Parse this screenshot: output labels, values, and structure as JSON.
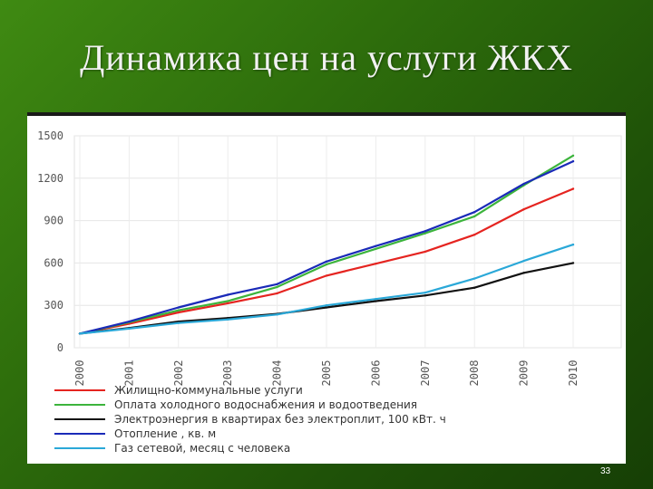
{
  "slide": {
    "title": "Динамика цен на услуги ЖКХ",
    "page_number": "33"
  },
  "colors": {
    "red": "#e52420",
    "green": "#3cb43c",
    "black": "#111111",
    "blue": "#1a2ab8",
    "cyan": "#2aa8d8"
  },
  "chart_data": {
    "type": "line",
    "title": "",
    "xlabel": "",
    "ylabel": "",
    "x": [
      "2000",
      "2001",
      "2002",
      "2003",
      "2004",
      "2005",
      "2006",
      "2007",
      "2008",
      "2009",
      "2010"
    ],
    "yticks": [
      0,
      300,
      600,
      900,
      1200,
      1500
    ],
    "ylim": [
      0,
      1500
    ],
    "grid": true,
    "legend_position": "bottom",
    "series": [
      {
        "name": "Жилищно-коммунальные услуги",
        "color": "#e52420",
        "values": [
          100,
          170,
          250,
          315,
          385,
          510,
          595,
          680,
          800,
          980,
          1125
        ]
      },
      {
        "name": "Оплата холодного водоснабжения и водоотведения",
        "color": "#3cb43c",
        "values": [
          100,
          180,
          265,
          330,
          430,
          590,
          700,
          810,
          930,
          1150,
          1360
        ]
      },
      {
        "name": "Электроэнергия в квартирах без электроплит, 100 кВт. ч",
        "color": "#111111",
        "values": [
          100,
          140,
          185,
          210,
          240,
          285,
          330,
          370,
          425,
          530,
          600
        ]
      },
      {
        "name": "Отопление , кв. м",
        "color": "#1a2ab8",
        "values": [
          100,
          185,
          285,
          375,
          450,
          610,
          720,
          825,
          960,
          1160,
          1320
        ]
      },
      {
        "name": "Газ сетевой, месяц с человека",
        "color": "#2aa8d8",
        "values": [
          100,
          135,
          175,
          200,
          235,
          300,
          345,
          390,
          490,
          615,
          730
        ]
      }
    ]
  }
}
